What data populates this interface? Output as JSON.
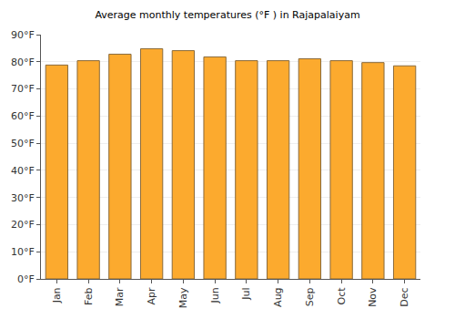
{
  "chart_data": {
    "type": "bar",
    "title": "Average monthly temperatures (°F ) in Rajapalaiyam",
    "categories": [
      "Jan",
      "Feb",
      "Mar",
      "Apr",
      "May",
      "Jun",
      "Jul",
      "Aug",
      "Sep",
      "Oct",
      "Nov",
      "Dec"
    ],
    "values": [
      78.8,
      80.4,
      82.8,
      84.8,
      84.1,
      81.8,
      80.4,
      80.4,
      81.1,
      80.4,
      79.7,
      78.5
    ],
    "color": "#fcaa2e",
    "ylim": [
      0,
      90
    ],
    "yticks": [
      {
        "value": 0,
        "label": "0°F"
      },
      {
        "value": 10,
        "label": "10°F"
      },
      {
        "value": 20,
        "label": "20°F"
      },
      {
        "value": 30,
        "label": "30°F"
      },
      {
        "value": 40,
        "label": "40°F"
      },
      {
        "value": 50,
        "label": "50°F"
      },
      {
        "value": 60,
        "label": "60°F"
      },
      {
        "value": 70,
        "label": "70°F"
      },
      {
        "value": 80,
        "label": "80°F"
      },
      {
        "value": 90,
        "label": "90°F"
      }
    ],
    "grid": true
  }
}
